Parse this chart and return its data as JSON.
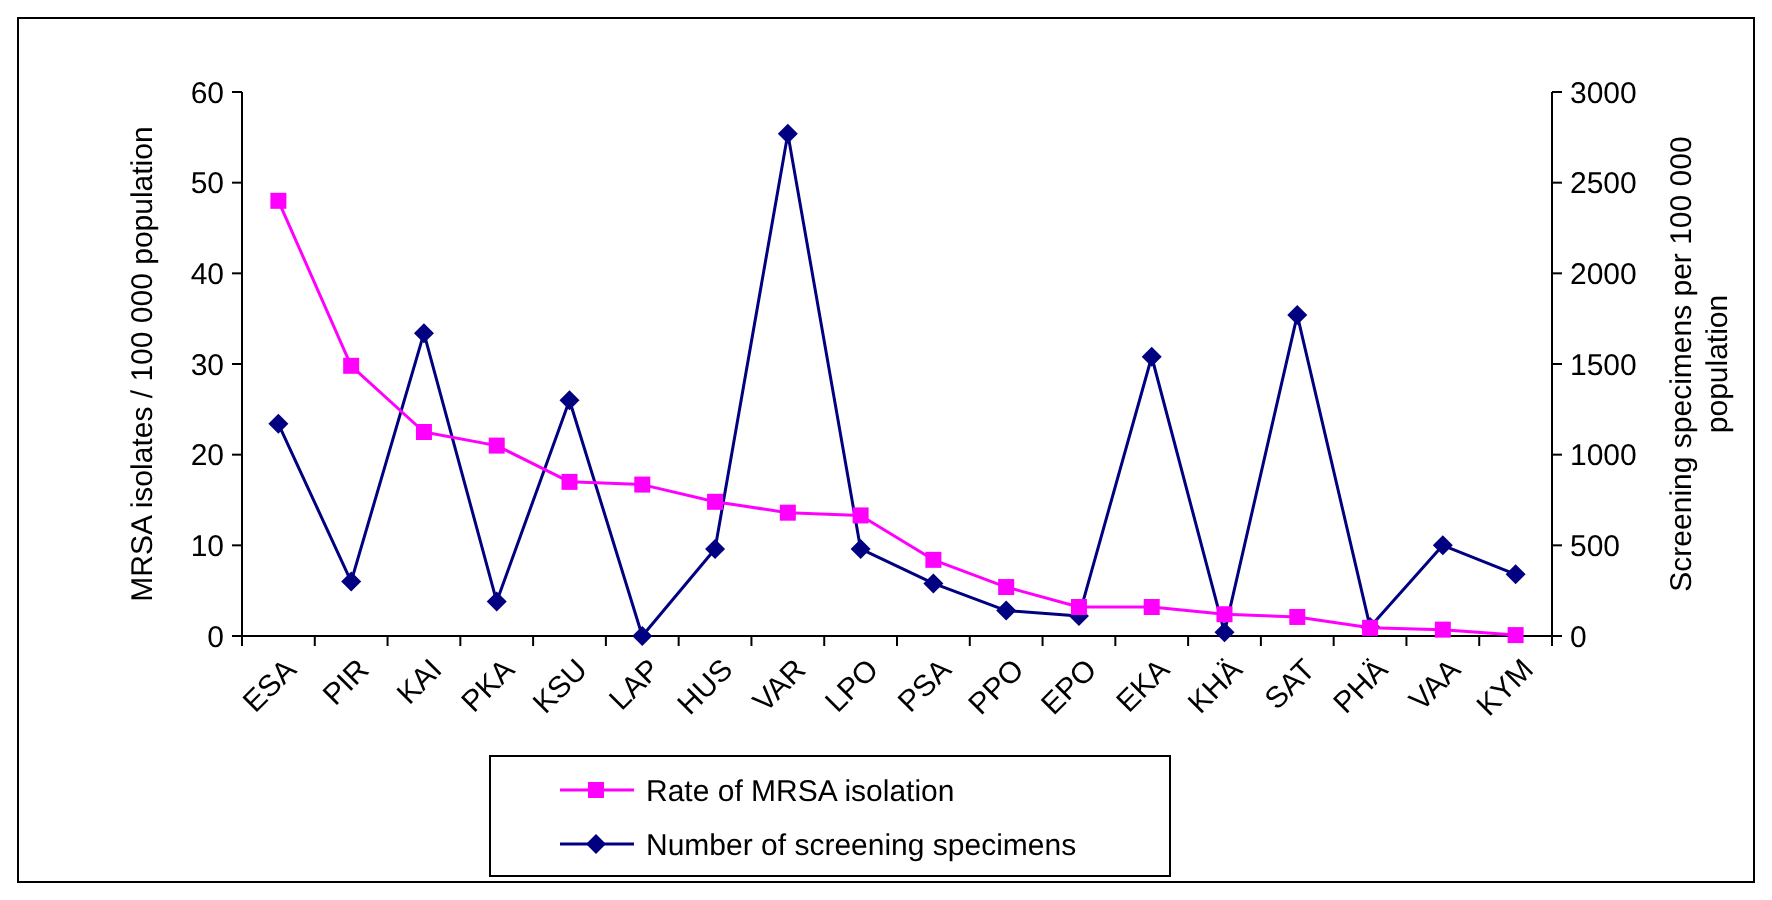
{
  "chart_data": {
    "type": "line",
    "ylabel": "MRSA isolates / 100 000 population",
    "y2label": "Screening specimens per 100 000 population",
    "categories": [
      "ESA",
      "PIR",
      "KAI",
      "PKA",
      "KSU",
      "LAP",
      "HUS",
      "VAR",
      "LPO",
      "PSA",
      "PPO",
      "EPO",
      "EKA",
      "KHÄ",
      "SAT",
      "PHÄ",
      "VAA",
      "KYM"
    ],
    "series": [
      {
        "name": "Rate of MRSA isolation",
        "color": "#ff00ff",
        "marker": "square",
        "values": [
          48,
          29.8,
          22.5,
          21,
          17,
          16.7,
          14.8,
          13.6,
          13.3,
          8.4,
          5.4,
          3.2,
          3.2,
          2.4,
          2.1,
          0.9,
          0.7,
          0.1
        ]
      },
      {
        "name": "Number of screening specimens",
        "color": "#000080",
        "marker": "diamond",
        "axis": "y2",
        "values": [
          1170,
          300,
          1670,
          190,
          1300,
          0,
          480,
          2770,
          480,
          290,
          140,
          110,
          1540,
          20,
          1770,
          50,
          500,
          340
        ]
      }
    ],
    "ylim": [
      0,
      60
    ],
    "yticks": [
      0,
      10,
      20,
      30,
      40,
      50,
      60
    ],
    "y2lim": [
      0,
      3000
    ],
    "y2ticks": [
      0,
      500,
      1000,
      1500,
      2000,
      2500,
      3000
    ],
    "legend": "bottom",
    "grid": false
  }
}
